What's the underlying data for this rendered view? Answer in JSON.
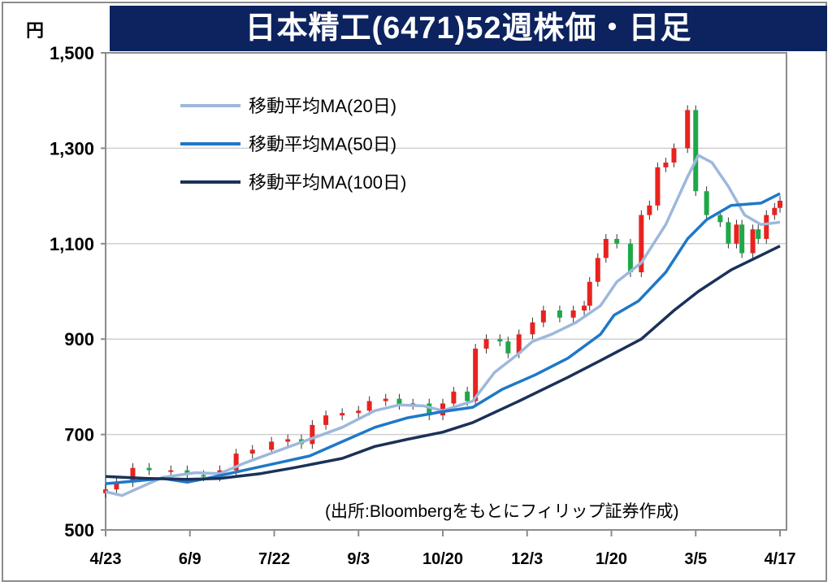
{
  "title": "日本精工(6471)52週株価・日足",
  "chart_data": {
    "type": "candlestick",
    "title": "日本精工(6471)52週株価・日足",
    "ylabel": "円",
    "ylim": [
      500,
      1500
    ],
    "yticks": [
      500,
      700,
      900,
      1100,
      1300,
      1500
    ],
    "ytick_labels": [
      "500",
      "700",
      "900",
      "1,100",
      "1,300",
      "1,500"
    ],
    "xlim": [
      0,
      248
    ],
    "xticks": [
      0,
      31,
      62,
      93,
      124,
      155,
      186,
      217,
      248
    ],
    "xtick_labels": [
      "4/23",
      "6/9",
      "7/22",
      "9/3",
      "10/20",
      "12/3",
      "1/20",
      "3/5",
      "4/17"
    ],
    "grid": true,
    "legend_position": "top-left",
    "colors": {
      "up": "#e8231f",
      "down": "#1ea84a",
      "ma20": "#9db8dc",
      "ma50": "#1f78c8",
      "ma100": "#1b3158",
      "grid": "#d0d0d0"
    },
    "price": {
      "day": [
        0,
        4,
        10,
        16,
        24,
        30,
        36,
        42,
        48,
        54,
        61,
        67,
        72,
        76,
        81,
        87,
        93,
        97,
        103,
        108,
        113,
        119,
        124,
        128,
        133,
        136,
        140,
        145,
        148,
        152,
        157,
        161,
        167,
        172,
        176,
        178,
        181,
        184,
        188,
        193,
        197,
        200,
        203,
        206,
        209,
        214,
        217,
        221,
        226,
        229,
        232,
        234,
        238,
        240,
        243,
        246,
        248
      ],
      "close": [
        585,
        600,
        630,
        625,
        625,
        615,
        612,
        625,
        660,
        668,
        685,
        690,
        680,
        720,
        740,
        745,
        750,
        770,
        775,
        762,
        765,
        740,
        765,
        790,
        770,
        880,
        900,
        895,
        870,
        910,
        935,
        960,
        945,
        960,
        970,
        1020,
        1070,
        1110,
        1100,
        1040,
        1160,
        1180,
        1260,
        1270,
        1300,
        1380,
        1210,
        1160,
        1145,
        1100,
        1140,
        1080,
        1130,
        1110,
        1160,
        1175,
        1190
      ]
    },
    "series": [
      {
        "name": "移動平均MA(20日)",
        "key": "ma20",
        "day": [
          0,
          6,
          13,
          21,
          33,
          42,
          51,
          63,
          75,
          87,
          99,
          108,
          117,
          124,
          135,
          143,
          152,
          157,
          164,
          173,
          182,
          188,
          197,
          206,
          214,
          218,
          223,
          229,
          235,
          241,
          248
        ],
        "values": [
          580,
          572,
          590,
          610,
          620,
          618,
          640,
          665,
          690,
          715,
          750,
          762,
          760,
          750,
          770,
          830,
          870,
          895,
          910,
          935,
          970,
          1020,
          1060,
          1140,
          1240,
          1285,
          1270,
          1220,
          1160,
          1140,
          1145
        ]
      },
      {
        "name": "移動平均MA(50日)",
        "key": "ma50",
        "day": [
          0,
          12,
          21,
          30,
          39,
          51,
          63,
          75,
          87,
          99,
          111,
          124,
          135,
          146,
          158,
          170,
          182,
          187,
          196,
          206,
          214,
          221,
          230,
          241,
          248
        ],
        "values": [
          597,
          603,
          608,
          600,
          610,
          625,
          640,
          655,
          685,
          715,
          735,
          748,
          757,
          795,
          825,
          860,
          910,
          950,
          980,
          1040,
          1110,
          1150,
          1180,
          1185,
          1205
        ]
      },
      {
        "name": "移動平均MA(100日)",
        "key": "ma100",
        "day": [
          0,
          15,
          30,
          42,
          57,
          69,
          87,
          99,
          111,
          124,
          135,
          152,
          170,
          182,
          197,
          209,
          218,
          230,
          239,
          248
        ],
        "values": [
          612,
          608,
          606,
          608,
          618,
          630,
          650,
          675,
          690,
          705,
          725,
          770,
          820,
          855,
          900,
          960,
          1000,
          1045,
          1070,
          1095
        ]
      }
    ],
    "legend": [
      "移動平均MA(20日)",
      "移動平均MA(50日)",
      "移動平均MA(100日)"
    ],
    "annotation": "(出所:Bloombergをもとにフィリップ証券作成)"
  }
}
